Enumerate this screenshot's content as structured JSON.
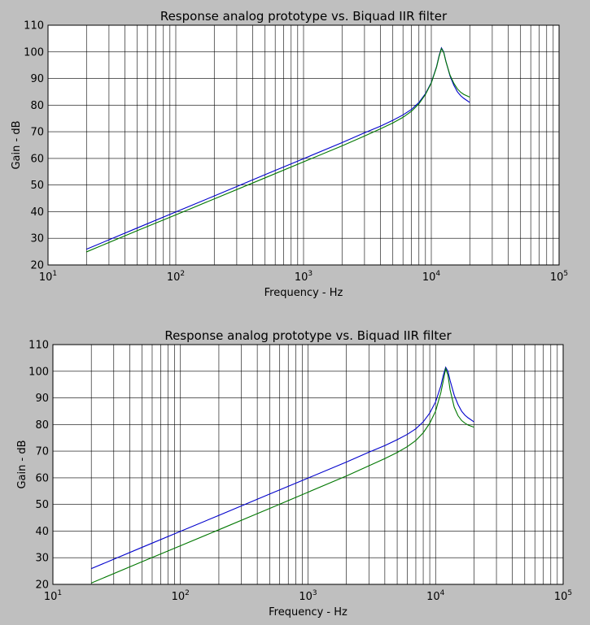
{
  "chart_data": [
    {
      "type": "line",
      "title": "Response analog prototype vs. Biquad IIR filter",
      "xlabel": "Frequency - Hz",
      "ylabel": "Gain - dB",
      "xscale": "log",
      "xlim": [
        10,
        100000
      ],
      "ylim": [
        20,
        110
      ],
      "grid": true,
      "x_tick_labels": [
        {
          "base": "10",
          "exp": "1",
          "value": 10
        },
        {
          "base": "10",
          "exp": "2",
          "value": 100
        },
        {
          "base": "10",
          "exp": "3",
          "value": 1000
        },
        {
          "base": "10",
          "exp": "4",
          "value": 10000
        },
        {
          "base": "10",
          "exp": "5",
          "value": 100000
        }
      ],
      "y_tick_labels": [
        "20",
        "30",
        "40",
        "50",
        "60",
        "70",
        "80",
        "90",
        "100",
        "110"
      ],
      "colors": {
        "series_1": "#0000cc",
        "series_2": "#007700"
      },
      "series": [
        {
          "x": [
            20,
            50,
            100,
            200,
            500,
            1000,
            2000,
            3000,
            4000,
            5000,
            6000,
            7000,
            8000,
            9000,
            10000,
            11000,
            11500,
            12000,
            12500,
            13000,
            14000,
            15000,
            16000,
            17000,
            18000,
            20000
          ],
          "y": [
            25.9,
            33.9,
            39.9,
            45.9,
            53.9,
            59.9,
            65.9,
            69.6,
            72.1,
            74.3,
            76.3,
            78.4,
            81.0,
            84.3,
            88.5,
            94.5,
            98.5,
            101.5,
            100.0,
            96.5,
            91.0,
            87.5,
            85.0,
            83.5,
            82.5,
            81.0
          ]
        },
        {
          "x": [
            20,
            50,
            100,
            200,
            500,
            1000,
            2000,
            3000,
            4000,
            5000,
            6000,
            7000,
            8000,
            9000,
            10000,
            11000,
            11500,
            12000,
            12500,
            13000,
            14000,
            15000,
            16000,
            17000,
            18000,
            20000
          ],
          "y": [
            24.9,
            32.9,
            38.8,
            44.8,
            52.7,
            58.7,
            64.7,
            68.4,
            71.1,
            73.3,
            75.4,
            77.7,
            80.5,
            84.0,
            88.3,
            94.3,
            98.2,
            101.2,
            99.8,
            96.4,
            91.3,
            88.2,
            86.1,
            84.8,
            84.0,
            83.0
          ]
        }
      ]
    },
    {
      "type": "line",
      "title": "Response analog prototype vs. Biquad IIR filter",
      "xlabel": "Frequency - Hz",
      "ylabel": "Gain - dB",
      "xscale": "log",
      "xlim": [
        10,
        100000
      ],
      "ylim": [
        20,
        110
      ],
      "grid": true,
      "x_tick_labels": [
        {
          "base": "10",
          "exp": "1",
          "value": 10
        },
        {
          "base": "10",
          "exp": "2",
          "value": 100
        },
        {
          "base": "10",
          "exp": "3",
          "value": 1000
        },
        {
          "base": "10",
          "exp": "4",
          "value": 10000
        },
        {
          "base": "10",
          "exp": "5",
          "value": 100000
        }
      ],
      "y_tick_labels": [
        "20",
        "30",
        "40",
        "50",
        "60",
        "70",
        "80",
        "90",
        "100",
        "110"
      ],
      "colors": {
        "series_1": "#0000cc",
        "series_2": "#007700"
      },
      "series": [
        {
          "x": [
            20,
            50,
            100,
            200,
            500,
            1000,
            2000,
            3000,
            4000,
            5000,
            6000,
            7000,
            8000,
            9000,
            10000,
            11000,
            11500,
            12000,
            12500,
            13000,
            14000,
            15000,
            16000,
            17000,
            18000,
            20000
          ],
          "y": [
            25.9,
            33.9,
            39.9,
            45.9,
            53.9,
            59.9,
            65.9,
            69.6,
            72.1,
            74.3,
            76.3,
            78.4,
            81.0,
            84.3,
            88.5,
            94.5,
            98.5,
            101.5,
            100.0,
            96.5,
            91.0,
            87.5,
            85.0,
            83.5,
            82.5,
            81.0
          ]
        },
        {
          "x": [
            20,
            50,
            100,
            200,
            500,
            1000,
            2000,
            3000,
            4000,
            5000,
            6000,
            7000,
            8000,
            9000,
            10000,
            11000,
            11500,
            12000,
            12500,
            13000,
            14000,
            15000,
            16000,
            17000,
            18000,
            20000
          ],
          "y": [
            20.5,
            28.5,
            34.5,
            40.5,
            48.5,
            54.6,
            60.7,
            64.5,
            67.2,
            69.5,
            71.7,
            74.0,
            76.9,
            80.5,
            85.0,
            92.0,
            96.5,
            101.0,
            98.5,
            93.0,
            86.5,
            83.3,
            81.5,
            80.5,
            79.8,
            79.0
          ]
        }
      ]
    }
  ]
}
